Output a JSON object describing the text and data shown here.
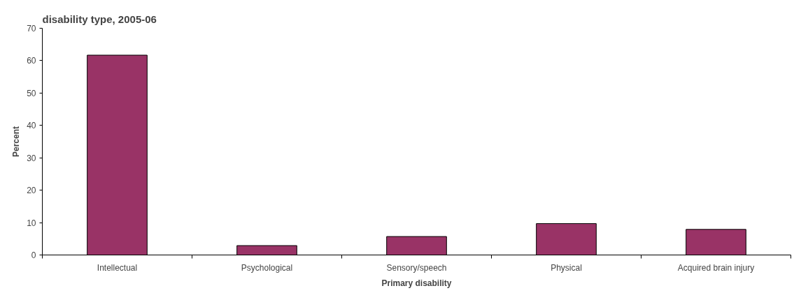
{
  "chart_data": {
    "type": "bar",
    "title": "disability type, 2005-06",
    "categories": [
      "Intellectual",
      "Psychological",
      "Sensory/speech",
      "Physical",
      "Acquired brain injury"
    ],
    "values": [
      61.7,
      2.9,
      5.7,
      9.7,
      7.9
    ],
    "color": "#993366",
    "xlabel": "Primary disability",
    "ylabel": "Percent",
    "ylim": [
      0,
      70
    ],
    "yticks": [
      0,
      10,
      20,
      30,
      40,
      50,
      60,
      70
    ],
    "grid": false
  }
}
